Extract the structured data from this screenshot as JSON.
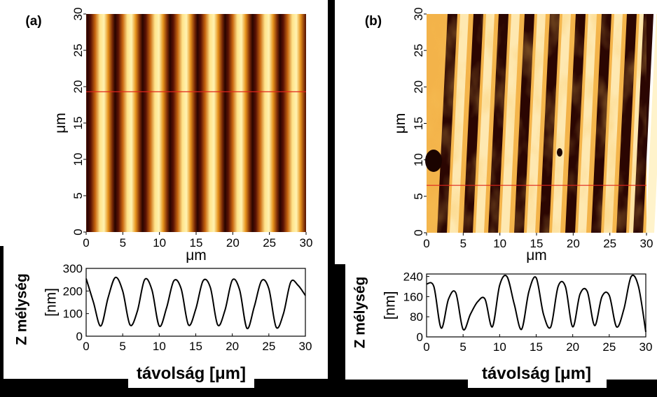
{
  "panels": [
    {
      "label": "(a)",
      "map": {
        "x_ticks": [
          "0",
          "5",
          "10",
          "15",
          "20",
          "25",
          "30"
        ],
        "y_ticks": [
          "0",
          "5",
          "10",
          "15",
          "20",
          "25",
          "30"
        ],
        "x_unit": "μm",
        "y_unit": "μm",
        "line_at_um": 19.3,
        "period_um": 3.75
      },
      "profile": {
        "ylabel": "Z mélység",
        "yunit": "[nm]",
        "y_ticks": [
          "0",
          "100",
          "200",
          "300"
        ],
        "x_ticks": [
          "0",
          "5",
          "10",
          "15",
          "20",
          "25",
          "30"
        ],
        "xlabel": "távolság [μm]"
      }
    },
    {
      "label": "(b)",
      "map": {
        "x_ticks": [
          "0",
          "5",
          "10",
          "15",
          "20",
          "25",
          "30"
        ],
        "y_ticks": [
          "0",
          "5",
          "10",
          "15",
          "20",
          "25",
          "30"
        ],
        "x_unit": "μm",
        "y_unit": "μm",
        "line_at_um": 6.5
      },
      "profile": {
        "ylabel": "Z mélység",
        "yunit": "[nm]",
        "y_ticks": [
          "0",
          "80",
          "160",
          "240"
        ],
        "x_ticks": [
          "0",
          "5",
          "10",
          "15",
          "20",
          "25",
          "30"
        ],
        "xlabel": "távolság [μm]"
      }
    }
  ],
  "chart_data": [
    {
      "type": "line",
      "title": "(a)",
      "xlabel": "távolság [μm]",
      "ylabel": "Z mélység [nm]",
      "xlim": [
        0,
        30
      ],
      "ylim": [
        0,
        300
      ],
      "series": [
        {
          "x": [
            0,
            1,
            2,
            3,
            4,
            5,
            6,
            7,
            8,
            9,
            10,
            11,
            12,
            13,
            14,
            15,
            16,
            17,
            18,
            19,
            20,
            21,
            22,
            23,
            24,
            25,
            26,
            27,
            28,
            29,
            30
          ],
          "values": [
            255,
            150,
            45,
            170,
            260,
            200,
            50,
            110,
            250,
            205,
            45,
            125,
            245,
            210,
            50,
            120,
            245,
            215,
            50,
            115,
            248,
            205,
            35,
            130,
            245,
            210,
            40,
            100,
            240,
            225,
            180
          ]
        }
      ]
    },
    {
      "type": "line",
      "title": "(b)",
      "xlabel": "távolság [μm]",
      "ylabel": "Z mélység [nm]",
      "xlim": [
        0,
        30
      ],
      "ylim": [
        0,
        250
      ],
      "series": [
        {
          "x": [
            0,
            1,
            2,
            3,
            4,
            5,
            6,
            7,
            8,
            9,
            10,
            11,
            12,
            13,
            14,
            15,
            16,
            17,
            18,
            19,
            20,
            21,
            22,
            23,
            24,
            25,
            26,
            27,
            28,
            29,
            30
          ],
          "values": [
            210,
            200,
            35,
            150,
            175,
            30,
            90,
            140,
            150,
            40,
            205,
            240,
            130,
            30,
            180,
            235,
            90,
            40,
            200,
            200,
            40,
            170,
            180,
            45,
            160,
            165,
            40,
            110,
            240,
            200,
            20
          ]
        }
      ]
    }
  ]
}
